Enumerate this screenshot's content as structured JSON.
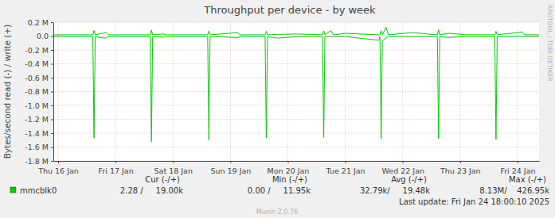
{
  "chart_data": {
    "type": "line",
    "title": "Throughput per device - by week",
    "y_label": "Bytes/second read (-) / write (+)",
    "x": [
      -2,
      14.5,
      15,
      15.5,
      20,
      21,
      22,
      26,
      38.5,
      39,
      39.5,
      44,
      45,
      62.5,
      63,
      63.5,
      68,
      75,
      76,
      86.5,
      87,
      87.5,
      92,
      100,
      110.5,
      111,
      111.5,
      114,
      115,
      120,
      134,
      134.5,
      135,
      135.5,
      137,
      138,
      148,
      158.5,
      159,
      159.5,
      163,
      170,
      182.5,
      183,
      183.5,
      188,
      194,
      195,
      201
    ],
    "series": [
      {
        "name": "mmcblk0",
        "color": "#00cc00",
        "values": [
          18000,
          18000,
          80000,
          18000,
          50000,
          18000,
          18000,
          18000,
          18000,
          85000,
          18000,
          30000,
          18000,
          18000,
          75000,
          18000,
          30000,
          50000,
          18000,
          18000,
          70000,
          18000,
          25000,
          30000,
          18000,
          75000,
          18000,
          80000,
          18000,
          40000,
          18000,
          18000,
          80000,
          18000,
          130000,
          18000,
          50000,
          18000,
          90000,
          18000,
          40000,
          20000,
          18000,
          70000,
          18000,
          35000,
          60000,
          18000,
          18000
        ],
        "stats": [
          "2.28 /     19.00k",
          "0.00 /     11.95k",
          "32.79k/     19.48k",
          "8.13M/    426.95k"
        ]
      },
      {
        "color": "#00cc00",
        "values": [
          -8000,
          -8000,
          -1470000,
          -10000,
          -30000,
          -8000,
          -8000,
          -8000,
          -8000,
          -1520000,
          -10000,
          -15000,
          -8000,
          -8000,
          -1500000,
          -10000,
          -8000,
          -25000,
          -8000,
          -8000,
          -1470000,
          -10000,
          -30000,
          -8000,
          -8000,
          -1460000,
          -10000,
          -8000,
          -8000,
          -8000,
          -60000,
          -8000,
          -1480000,
          -70000,
          -30000,
          -8000,
          -8000,
          -8000,
          -1480000,
          -10000,
          -20000,
          -8000,
          -8000,
          -1490000,
          -10000,
          -8000,
          -8000,
          -8000,
          -8000
        ]
      }
    ],
    "xlim": [
      -2,
      201
    ],
    "xticks": [
      {
        "value": 0,
        "label": "Thu 16 Jan"
      },
      {
        "value": 24,
        "label": "Fri 17 Jan"
      },
      {
        "value": 48,
        "label": "Sat 18 Jan"
      },
      {
        "value": 72,
        "label": "Sun 19 Jan"
      },
      {
        "value": 96,
        "label": "Mon 20 Jan"
      },
      {
        "value": 120,
        "label": "Tue 21 Jan"
      },
      {
        "value": 144,
        "label": "Wed 22 Jan"
      },
      {
        "value": 168,
        "label": "Thu 23 Jan"
      },
      {
        "value": 192,
        "label": "Fri 24 Jan"
      }
    ],
    "ylim": [
      -1800000,
      200000
    ],
    "yticks": [
      {
        "value": 200000,
        "label": "0.2 M"
      },
      {
        "value": 0,
        "label": "0.0"
      },
      {
        "value": -200000,
        "label": "-0.2 M"
      },
      {
        "value": -400000,
        "label": "-0.4 M"
      },
      {
        "value": -600000,
        "label": "-0.6 M"
      },
      {
        "value": -800000,
        "label": "-0.8 M"
      },
      {
        "value": -1000000,
        "label": "-1.0 M"
      },
      {
        "value": -1200000,
        "label": "-1.2 M"
      },
      {
        "value": -1400000,
        "label": "-1.4 M"
      },
      {
        "value": -1600000,
        "label": "-1.6 M"
      },
      {
        "value": -1800000,
        "label": "-1.8 M"
      }
    ],
    "grid": true,
    "legend": "bottom",
    "legend_columns": [
      "Cur (-/+)",
      "Min (-/+)",
      "Avg (-/+)",
      "Max (-/+)"
    ],
    "last_update": "Last update: Fri Jan 24 18:00:10 2025",
    "credit": "Munin 2.0.76",
    "watermark": "RRDTOOL / TOBI OETIKER"
  }
}
